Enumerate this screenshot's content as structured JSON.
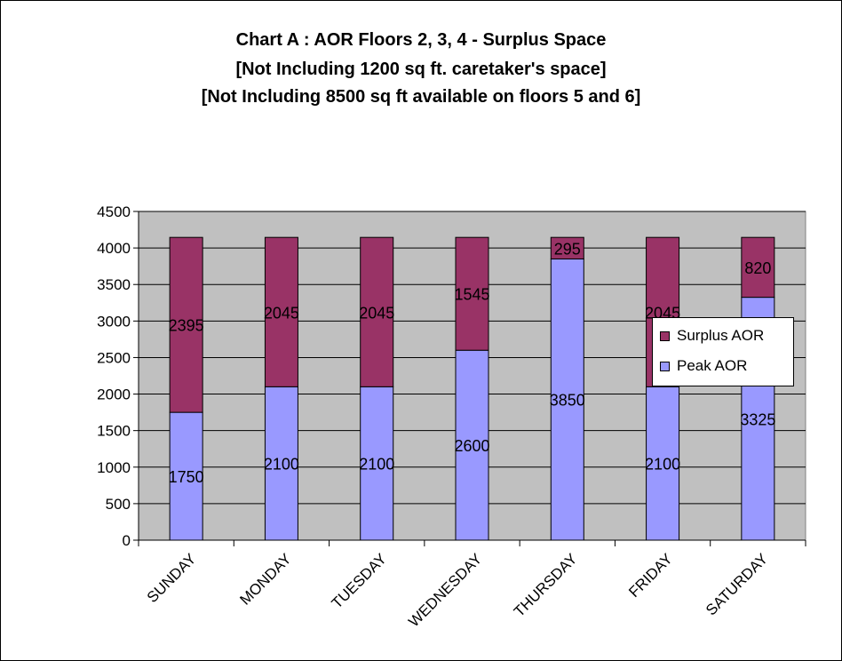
{
  "chart_data": {
    "type": "bar",
    "stacked": true,
    "title_lines": [
      "Chart A :  AOR Floors 2, 3, 4 -  Surplus Space",
      "[Not Including 1200 sq ft. caretaker's space]",
      "[Not Including 8500 sq ft available on floors 5 and 6]"
    ],
    "categories": [
      "SUNDAY",
      "MONDAY",
      "TUESDAY",
      "WEDNESDAY",
      "THURSDAY",
      "FRIDAY",
      "SATURDAY"
    ],
    "series": [
      {
        "name": "Peak AOR",
        "color": "#9999FF",
        "values": [
          1750,
          2100,
          2100,
          2600,
          3850,
          2100,
          3325
        ]
      },
      {
        "name": "Surplus AOR",
        "color": "#993366",
        "values": [
          2395,
          2045,
          2045,
          1545,
          295,
          2045,
          820
        ]
      }
    ],
    "ylim": [
      0,
      4500
    ],
    "yticks": [
      0,
      500,
      1000,
      1500,
      2000,
      2500,
      3000,
      3500,
      4000,
      4500
    ],
    "plot_background": "#C0C0C0",
    "grid": "horizontal major lines",
    "legend_position": "right",
    "legend": [
      {
        "label": "Surplus AOR",
        "color": "#993366"
      },
      {
        "label": "Peak AOR",
        "color": "#9999FF"
      }
    ]
  }
}
